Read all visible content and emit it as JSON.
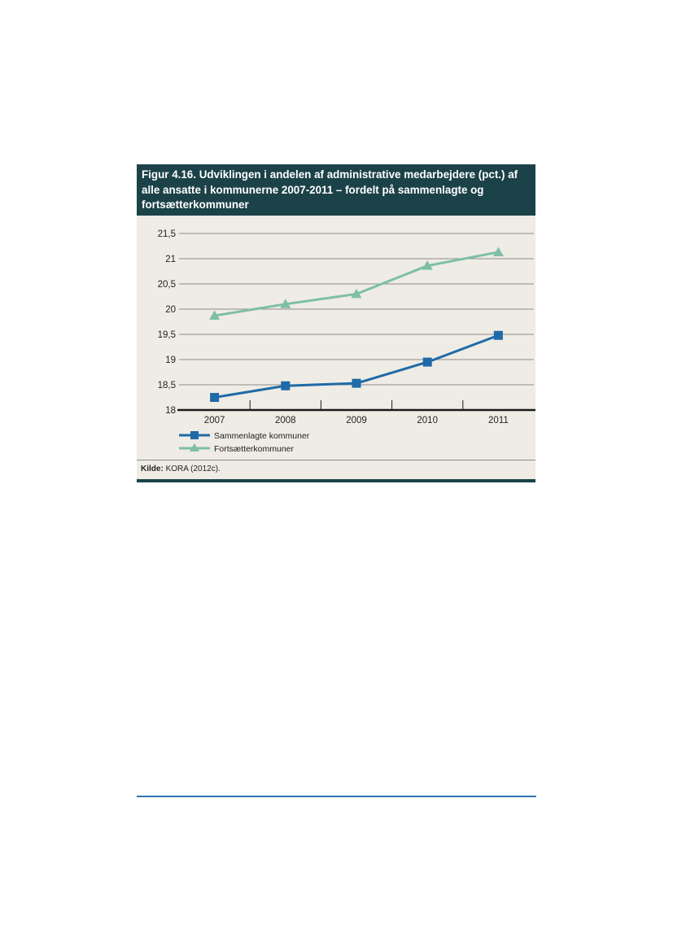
{
  "figure": {
    "title": "Figur 4.16. Udviklingen i andelen af administrative medarbejdere (pct.) af alle ansatte i kommunerne 2007-2011 – fordelt på sammenlagte og fortsætterkommuner",
    "source_label": "Kilde:",
    "source_text": "KORA (2012c)."
  },
  "colors": {
    "header_bg": "#1c4249",
    "panel_bg": "#eeece4",
    "series_sammenlagte": "#1f6aa8",
    "series_fortsaetter": "#7dbfa6",
    "page_rule": "#2e74b5"
  },
  "chart_data": {
    "type": "line",
    "x": [
      "2007",
      "2008",
      "2009",
      "2010",
      "2011"
    ],
    "ylim": [
      18,
      21.5
    ],
    "yticks": [
      18,
      18.5,
      19,
      19.5,
      20,
      20.5,
      21,
      21.5
    ],
    "ytick_labels": [
      "18",
      "18,5",
      "19",
      "19,5",
      "20",
      "20,5",
      "21",
      "21,5"
    ],
    "grid": true,
    "legend_position": "bottom-left",
    "series": [
      {
        "name": "Sammenlagte kommuner",
        "marker": "square",
        "values": [
          18.25,
          18.48,
          18.53,
          18.95,
          19.48
        ]
      },
      {
        "name": "Fortsætterkommuner",
        "marker": "triangle",
        "values": [
          19.87,
          20.1,
          20.3,
          20.86,
          21.13
        ]
      }
    ]
  }
}
